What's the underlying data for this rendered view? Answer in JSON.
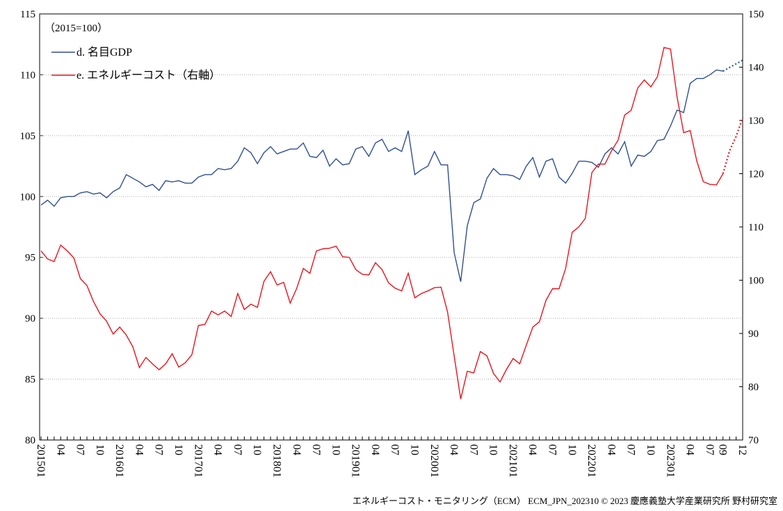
{
  "chart_data": {
    "type": "line",
    "annotation": "（2015=100）",
    "source": "エネルギーコスト・モニタリング（ECM） ECM_JPN_202310 © 2023 慶應義塾大学産業研究所 野村研究室",
    "categories": [
      "201501",
      null,
      null,
      "04",
      null,
      null,
      "07",
      null,
      null,
      "10",
      null,
      null,
      "201601",
      null,
      null,
      "04",
      null,
      null,
      "07",
      null,
      null,
      "10",
      null,
      null,
      "201701",
      null,
      null,
      "04",
      null,
      null,
      "07",
      null,
      null,
      "10",
      null,
      null,
      "201801",
      null,
      null,
      "04",
      null,
      null,
      "07",
      null,
      null,
      "10",
      null,
      null,
      "201901",
      null,
      null,
      "04",
      null,
      null,
      "07",
      null,
      null,
      "10",
      null,
      null,
      "202001",
      null,
      null,
      "04",
      null,
      null,
      "07",
      null,
      null,
      "10",
      null,
      null,
      "202101",
      null,
      null,
      "04",
      null,
      null,
      "07",
      null,
      null,
      "10",
      null,
      null,
      "202201",
      null,
      null,
      "04",
      null,
      null,
      "07",
      null,
      null,
      "10",
      null,
      null,
      "202301",
      null,
      null,
      "04",
      null,
      null,
      "07",
      null,
      "09",
      null,
      null,
      "12"
    ],
    "ylim": [
      80,
      115
    ],
    "yticks": [
      80,
      85,
      90,
      95,
      100,
      105,
      110,
      115
    ],
    "y2lim": [
      70,
      150
    ],
    "y2ticks": [
      70,
      80,
      90,
      100,
      110,
      120,
      130,
      140,
      150
    ],
    "grid": true,
    "legend": "top-left",
    "dotted_from_index": 104,
    "series": [
      {
        "name": "d. 名目GDP",
        "color": "#2f4f8f",
        "values": [
          99.3,
          99.7,
          99.2,
          99.9,
          100.0,
          100.0,
          100.3,
          100.4,
          100.2,
          100.3,
          99.9,
          100.4,
          100.7,
          101.8,
          101.5,
          101.2,
          100.8,
          101.0,
          100.5,
          101.3,
          101.2,
          101.3,
          101.1,
          101.1,
          101.6,
          101.8,
          101.8,
          102.3,
          102.2,
          102.3,
          102.9,
          104.0,
          103.6,
          102.7,
          103.6,
          104.1,
          103.5,
          103.7,
          103.9,
          103.9,
          104.4,
          103.3,
          103.2,
          103.8,
          102.5,
          103.1,
          102.6,
          102.7,
          103.9,
          104.1,
          103.3,
          104.4,
          104.7,
          103.7,
          104.0,
          103.7,
          105.4,
          101.8,
          102.2,
          102.5,
          103.7,
          102.6,
          102.6,
          95.4,
          93.0,
          97.6,
          99.5,
          99.8,
          101.5,
          102.3,
          101.8,
          101.8,
          101.7,
          101.4,
          102.5,
          103.2,
          101.6,
          102.9,
          103.1,
          101.6,
          101.1,
          101.9,
          102.9,
          102.9,
          102.8,
          102.4,
          103.5,
          104.0,
          103.5,
          104.5,
          102.5,
          103.4,
          103.3,
          103.7,
          104.6,
          104.7,
          105.8,
          107.1,
          106.9,
          109.3,
          109.7,
          109.7,
          110.0,
          110.4,
          110.3,
          110.6,
          110.9,
          111.2
        ]
      },
      {
        "name": "e. エネルギーコスト（右軸）",
        "color": "#e8141e",
        "axis": "y2",
        "values": [
          105.5,
          104.0,
          103.5,
          106.6,
          105.5,
          104.2,
          100.3,
          99.0,
          96.0,
          93.7,
          92.3,
          89.9,
          91.2,
          89.7,
          87.5,
          83.6,
          85.5,
          84.3,
          83.2,
          84.3,
          86.2,
          83.7,
          84.5,
          86.0,
          91.5,
          91.7,
          94.2,
          93.5,
          94.2,
          93.2,
          97.5,
          94.5,
          95.5,
          94.9,
          99.8,
          101.6,
          99.1,
          99.6,
          95.7,
          98.5,
          102.2,
          101.3,
          105.5,
          105.9,
          106.0,
          106.4,
          104.4,
          104.3,
          102.0,
          101.1,
          101.0,
          103.3,
          102.0,
          99.5,
          98.5,
          98.0,
          101.3,
          96.7,
          97.5,
          98.0,
          98.6,
          98.7,
          94.0,
          85.8,
          77.7,
          82.9,
          82.6,
          86.6,
          85.8,
          82.5,
          80.9,
          83.3,
          85.3,
          84.3,
          87.8,
          91.2,
          92.2,
          96.2,
          98.4,
          98.4,
          102.2,
          109.0,
          110.0,
          111.6,
          120.2,
          121.8,
          121.8,
          124.3,
          126.3,
          131.0,
          131.9,
          136.1,
          137.6,
          136.3,
          138.2,
          143.7,
          143.4,
          134.4,
          127.7,
          128.1,
          122.4,
          118.5,
          118.0,
          117.9,
          120.0,
          124.3,
          127.0,
          130.5
        ]
      }
    ]
  }
}
